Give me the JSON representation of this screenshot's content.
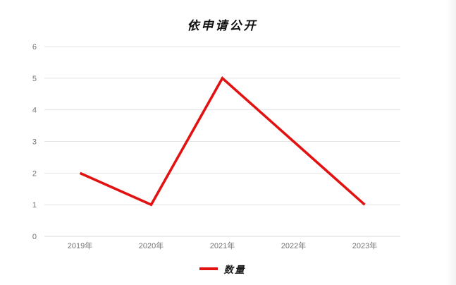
{
  "chart": {
    "legend": {
      "label": "数量"
    },
    "colors": {
      "line": "#e31212",
      "grid": "#e4e4e4",
      "axis": "#d8d8d8",
      "tick_text": "#737373",
      "title_text": "#111111"
    }
  },
  "chart_data": {
    "type": "line",
    "title": "依申请公开",
    "categories": [
      "2019年",
      "2020年",
      "2021年",
      "2022年",
      "2023年"
    ],
    "series": [
      {
        "name": "数量",
        "values": [
          2,
          1,
          5,
          3,
          1
        ]
      }
    ],
    "xlabel": "",
    "ylabel": "",
    "ylim": [
      0,
      6
    ],
    "ytick_step": 1,
    "grid": true,
    "legend_position": "bottom"
  }
}
